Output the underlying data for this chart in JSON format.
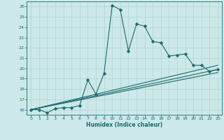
{
  "xlabel": "Humidex (Indice chaleur)",
  "xlim": [
    -0.5,
    23.5
  ],
  "ylim": [
    15.5,
    26.5
  ],
  "xticks": [
    0,
    1,
    2,
    3,
    4,
    5,
    6,
    7,
    8,
    9,
    10,
    11,
    12,
    13,
    14,
    15,
    16,
    17,
    18,
    19,
    20,
    21,
    22,
    23
  ],
  "yticks": [
    16,
    17,
    18,
    19,
    20,
    21,
    22,
    23,
    24,
    25,
    26
  ],
  "bg_color": "#cce8e8",
  "grid_color": "#b0d4d4",
  "line_color": "#1a6b6b",
  "line1_x": [
    0,
    1,
    2,
    3,
    4,
    5,
    6,
    7,
    8,
    9,
    10,
    11,
    12,
    13,
    14,
    15,
    16,
    17,
    18,
    19,
    20,
    21,
    22,
    23
  ],
  "line1_y": [
    16.0,
    16.0,
    15.7,
    16.1,
    16.2,
    16.2,
    16.4,
    18.9,
    17.5,
    19.5,
    26.1,
    25.7,
    21.7,
    24.3,
    24.1,
    22.6,
    22.5,
    21.2,
    21.3,
    21.4,
    20.3,
    20.3,
    19.7,
    19.9
  ],
  "line2_x": [
    0,
    23
  ],
  "line2_y": [
    16.0,
    20.3
  ],
  "line3_x": [
    0,
    23
  ],
  "line3_y": [
    16.0,
    19.6
  ],
  "line4_x": [
    0,
    23
  ],
  "line4_y": [
    16.0,
    19.9
  ]
}
